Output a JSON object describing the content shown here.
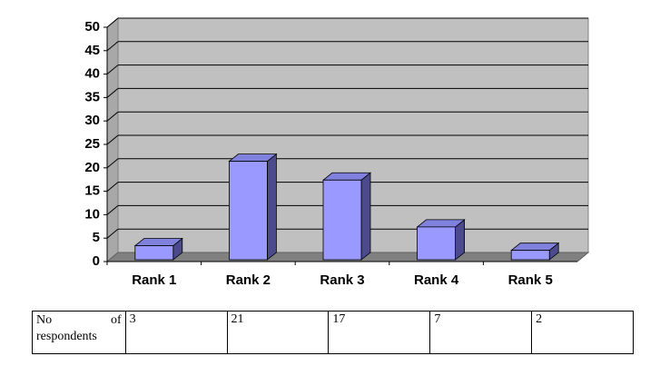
{
  "chart_data": {
    "type": "bar3d",
    "categories": [
      "Rank 1",
      "Rank 2",
      "Rank 3",
      "Rank 4",
      "Rank 5"
    ],
    "values": [
      3,
      21,
      17,
      7,
      2
    ],
    "color": "#9999ff",
    "ylim": [
      0,
      50
    ],
    "yticks": [
      0,
      5,
      10,
      15,
      20,
      25,
      30,
      35,
      40,
      45,
      50
    ],
    "grid": true
  },
  "table": {
    "row_label": "No of respondents"
  }
}
